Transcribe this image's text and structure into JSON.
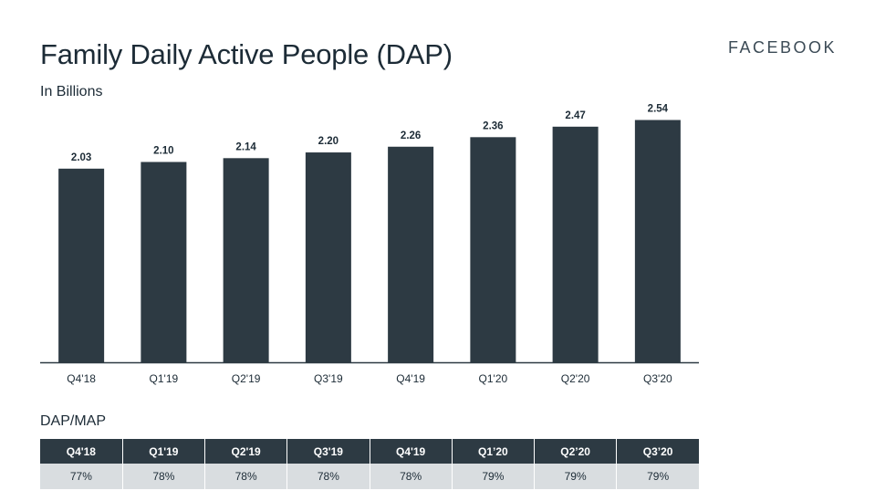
{
  "header": {
    "title": "Family Daily Active People (DAP)",
    "subtitle": "In Billions",
    "brand": "FACEBOOK"
  },
  "chart_data": {
    "type": "bar",
    "title": "Family Daily Active People (DAP)",
    "subtitle": "In Billions",
    "categories": [
      "Q4'18",
      "Q1'19",
      "Q2'19",
      "Q3'19",
      "Q4'19",
      "Q1'20",
      "Q2'20",
      "Q3'20"
    ],
    "values": [
      2.03,
      2.1,
      2.14,
      2.2,
      2.26,
      2.36,
      2.47,
      2.54
    ],
    "value_labels": [
      "2.03",
      "2.10",
      "2.14",
      "2.20",
      "2.26",
      "2.36",
      "2.47",
      "2.54"
    ],
    "bar_color": "#2d3a43",
    "grid": false,
    "ylim": [
      0,
      2.65
    ]
  },
  "ratio_table": {
    "title": "DAP/MAP",
    "headers": [
      "Q4'18",
      "Q1'19",
      "Q2'19",
      "Q3'19",
      "Q4'19",
      "Q1’20",
      "Q2’20",
      "Q3’20"
    ],
    "values": [
      "77%",
      "78%",
      "78%",
      "78%",
      "78%",
      "79%",
      "79%",
      "79%"
    ]
  },
  "colors": {
    "bar": "#2d3a43",
    "table_header_bg": "#2d3a43",
    "table_cell_bg": "#d9dde0",
    "axis": "#2d3a43"
  }
}
